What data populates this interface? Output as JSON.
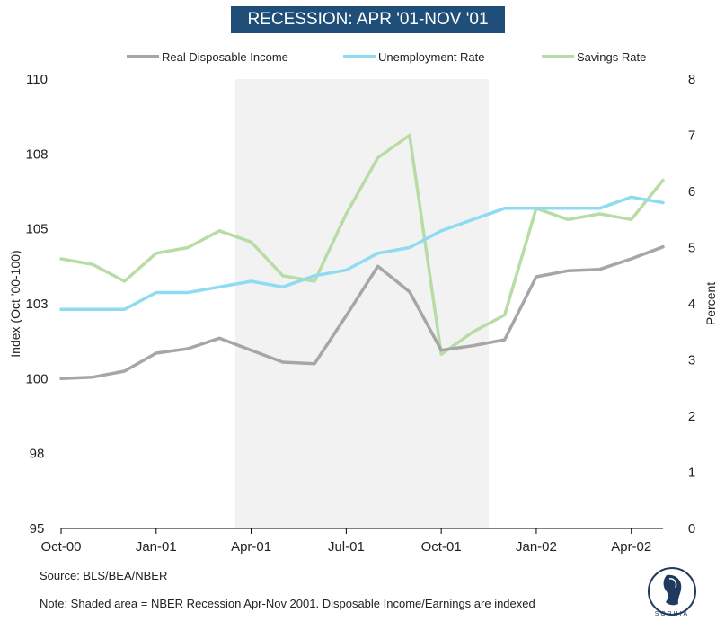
{
  "chart_data": {
    "type": "line",
    "title": "RECESSION: APR '01-NOV '01",
    "x": [
      "Oct-00",
      "Nov-00",
      "Dec-00",
      "Jan-01",
      "Feb-01",
      "Mar-01",
      "Apr-01",
      "May-01",
      "Jun-01",
      "Jul-01",
      "Aug-01",
      "Sep-01",
      "Oct-01",
      "Nov-01",
      "Dec-01",
      "Jan-02",
      "Feb-02",
      "Mar-02",
      "Apr-02",
      "May-02"
    ],
    "x_tick_labels": [
      "Oct-00",
      "Jan-01",
      "Apr-01",
      "Jul-01",
      "Oct-01",
      "Jan-02",
      "Apr-02"
    ],
    "x_tick_indices": [
      0,
      3,
      6,
      9,
      12,
      15,
      18
    ],
    "ylabel_left": "Index (Oct '00-100)",
    "ylabel_right": "Percent",
    "y_left_ticks": [
      "95",
      "98",
      "100",
      "103",
      "105",
      "108",
      "110"
    ],
    "y_left_range": [
      95,
      110
    ],
    "y_right_ticks": [
      "0",
      "1",
      "2",
      "3",
      "4",
      "5",
      "6",
      "7",
      "8"
    ],
    "y_right_range": [
      0,
      8
    ],
    "recession_shading": {
      "start_index": 5.5,
      "end_index": 13.5,
      "label": "Apr-Nov 2001"
    },
    "series": [
      {
        "name": "Real Disposable Income",
        "axis": "left",
        "color": "#a6a6a6",
        "values": [
          100.0,
          100.05,
          100.25,
          100.85,
          101.0,
          101.35,
          100.95,
          100.55,
          100.5,
          102.1,
          103.75,
          102.9,
          100.95,
          101.1,
          101.3,
          103.4,
          103.6,
          103.65,
          104.0,
          104.4
        ]
      },
      {
        "name": "Unemployment Rate",
        "axis": "right",
        "color": "#8fdcf2",
        "values": [
          3.9,
          3.9,
          3.9,
          4.2,
          4.2,
          4.3,
          4.4,
          4.3,
          4.5,
          4.6,
          4.9,
          5.0,
          5.3,
          5.5,
          5.7,
          5.7,
          5.7,
          5.7,
          5.9,
          5.8
        ]
      },
      {
        "name": "Savings Rate",
        "axis": "right",
        "color": "#b8dca6",
        "values": [
          4.8,
          4.7,
          4.4,
          4.9,
          5.0,
          5.3,
          5.1,
          4.5,
          4.4,
          5.6,
          6.6,
          7.0,
          3.1,
          3.5,
          3.8,
          5.7,
          5.5,
          5.6,
          5.5,
          6.2
        ]
      }
    ]
  },
  "footer": {
    "source": "Source: BLS/BEA/NBER",
    "note": "Note: Shaded area = NBER Recession Apr-Nov 2001. Disposable Income/Earnings are indexed"
  },
  "logo": {
    "name": "SOPHIA"
  }
}
